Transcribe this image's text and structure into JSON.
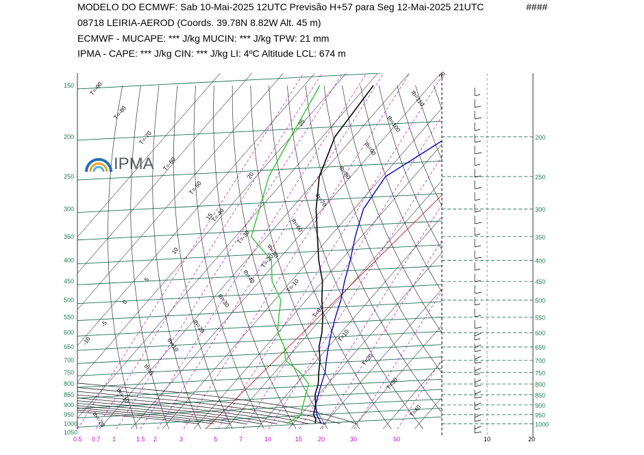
{
  "header": {
    "line1": "MODELO DO ECMWF:  Sab  10-Mai-2025 12UTC  Previsão H+57  para  Seg 12-Mai-2025 21UTC",
    "marker": "####",
    "line2": "08718   LEIRIA-AEROD  (Coords.  39.78N 8.82W   Alt. 45 m)",
    "line3": "ECMWF - MUCAPE: *** J/kg   MUCIN: *** J/kg    TPW: 21 mm",
    "line4": "IPMA - CAPE: *** J/kg   CIN: *** J/kg   LI: 4ºC   Altitude LCL: 674 m"
  },
  "logo": {
    "text": "IPMA"
  },
  "colors": {
    "isobar": "#1b6e4e",
    "isotherm": "#000000",
    "mixing_ratio": "#cc00cc",
    "temperature": "#000000",
    "dewpoint": "#33cc33",
    "parcel": "#0000cc",
    "zero_isotherm": "#cc0000",
    "label_green": "#1b7e4e"
  },
  "chart_data": {
    "type": "skew-t",
    "pressure_levels_left": [
      "150",
      "200",
      "250",
      "300",
      "350",
      "400",
      "450",
      "500",
      "550",
      "600",
      "650",
      "700",
      "750",
      "800",
      "850",
      "900",
      "950",
      "1000",
      "1050"
    ],
    "pressure_levels_right": [
      "200",
      "250",
      "300",
      "350",
      "400",
      "450",
      "500",
      "550",
      "600",
      "650",
      "700",
      "750",
      "800",
      "850",
      "900",
      "950",
      "1000"
    ],
    "mixing_ratio_labels": [
      "0.5",
      "0.7",
      "1",
      "1.5",
      "2",
      "3",
      "5",
      "7",
      "10",
      "15",
      "20",
      "30",
      "50"
    ],
    "wind_axis_labels": [
      "10",
      "20"
    ],
    "isotherm_labels": [
      "T=-90",
      "T=-80",
      "T=-70",
      "T=-60",
      "T=-50",
      "T=-40",
      "T=-30",
      "T=-20",
      "T=-10",
      "T=0",
      "T=10",
      "T=20",
      "T=30",
      "T=40"
    ],
    "theta_labels": [
      "th=110",
      "th=100",
      "th=90",
      "th=80",
      "th=70",
      "th=60",
      "th=50",
      "th=40",
      "th=30",
      "th=20",
      "th=10",
      "th=0",
      "th=-10",
      "th=-20"
    ],
    "thetae_labels": [
      "25",
      "20",
      "15",
      "10",
      "5",
      "0",
      "-5",
      "-10"
    ],
    "temperature_profile": [
      {
        "p": 1000,
        "t": 17
      },
      {
        "p": 975,
        "t": 16
      },
      {
        "p": 950,
        "t": 14
      },
      {
        "p": 900,
        "t": 12
      },
      {
        "p": 850,
        "t": 9
      },
      {
        "p": 800,
        "t": 7
      },
      {
        "p": 750,
        "t": 4
      },
      {
        "p": 700,
        "t": 1
      },
      {
        "p": 650,
        "t": -3
      },
      {
        "p": 600,
        "t": -6
      },
      {
        "p": 550,
        "t": -10
      },
      {
        "p": 500,
        "t": -15
      },
      {
        "p": 450,
        "t": -20
      },
      {
        "p": 400,
        "t": -27
      },
      {
        "p": 350,
        "t": -34
      },
      {
        "p": 300,
        "t": -42
      },
      {
        "p": 250,
        "t": -50
      },
      {
        "p": 200,
        "t": -56
      },
      {
        "p": 150,
        "t": -58
      }
    ],
    "dewpoint_profile": [
      {
        "p": 1000,
        "t": 8
      },
      {
        "p": 975,
        "t": 9
      },
      {
        "p": 950,
        "t": 10
      },
      {
        "p": 900,
        "t": 8
      },
      {
        "p": 850,
        "t": 6
      },
      {
        "p": 800,
        "t": 4
      },
      {
        "p": 750,
        "t": -2
      },
      {
        "p": 700,
        "t": -10
      },
      {
        "p": 650,
        "t": -14
      },
      {
        "p": 600,
        "t": -20
      },
      {
        "p": 550,
        "t": -24
      },
      {
        "p": 500,
        "t": -28
      },
      {
        "p": 450,
        "t": -36
      },
      {
        "p": 400,
        "t": -42
      },
      {
        "p": 350,
        "t": -55
      },
      {
        "p": 300,
        "t": -60
      },
      {
        "p": 250,
        "t": -66
      },
      {
        "p": 200,
        "t": -70
      },
      {
        "p": 150,
        "t": -75
      }
    ],
    "parcel_profile": [
      {
        "p": 1000,
        "t": 19
      },
      {
        "p": 975,
        "t": 17
      },
      {
        "p": 950,
        "t": 15
      },
      {
        "p": 900,
        "t": 12
      },
      {
        "p": 850,
        "t": 10
      },
      {
        "p": 800,
        "t": 8
      },
      {
        "p": 750,
        "t": 6
      },
      {
        "p": 700,
        "t": 3
      },
      {
        "p": 650,
        "t": 0
      },
      {
        "p": 600,
        "t": -3
      },
      {
        "p": 550,
        "t": -6
      },
      {
        "p": 500,
        "t": -9
      },
      {
        "p": 450,
        "t": -13
      },
      {
        "p": 400,
        "t": -17
      },
      {
        "p": 350,
        "t": -22
      },
      {
        "p": 300,
        "t": -27
      },
      {
        "p": 250,
        "t": -29
      },
      {
        "p": 200,
        "t": -20
      },
      {
        "p": 150,
        "t": -2
      }
    ]
  }
}
